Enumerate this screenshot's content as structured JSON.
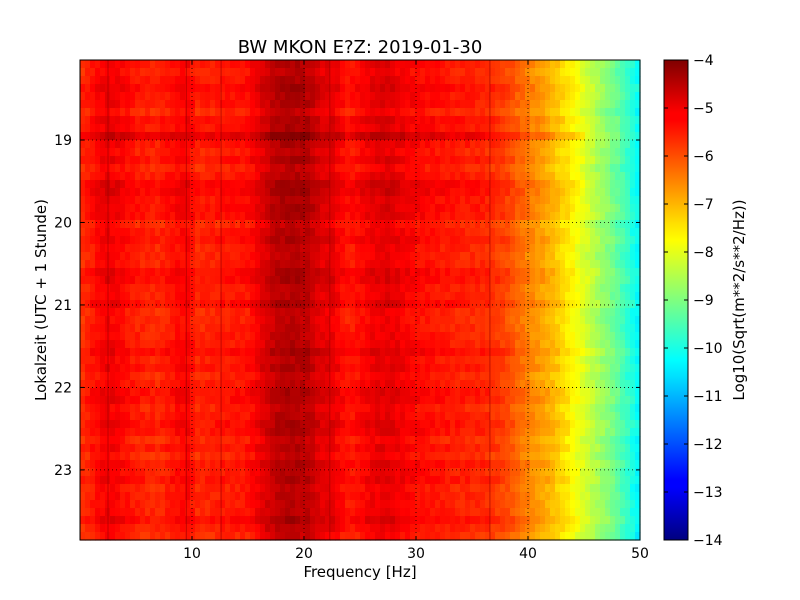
{
  "chart_data": {
    "type": "heatmap",
    "title": "BW MKON E?Z: 2019-01-30",
    "xlabel": "Frequency [Hz]",
    "ylabel": "Lokalzeit (UTC + 1 Stunde)",
    "xlim": [
      0,
      50
    ],
    "ylim_hours": [
      18.03,
      23.85
    ],
    "y_inverted": true,
    "x_ticks": [
      10,
      20,
      30,
      40,
      50
    ],
    "x_tick_labels": [
      "10",
      "20",
      "30",
      "40",
      "50"
    ],
    "y_ticks": [
      19,
      20,
      21,
      22,
      23
    ],
    "y_tick_labels": [
      "19",
      "20",
      "21",
      "22",
      "23"
    ],
    "grid": "dotted",
    "colormap": "jet",
    "colorbar": {
      "label": "Log10(Sqrt(m**2/s**2/Hz))",
      "range": [
        -14,
        -4
      ],
      "ticks": [
        -4,
        -5,
        -6,
        -7,
        -8,
        -9,
        -10,
        -11,
        -12,
        -13,
        -14
      ],
      "tick_labels": [
        "−4",
        "−5",
        "−6",
        "−7",
        "−8",
        "−9",
        "−10",
        "−11",
        "−12",
        "−13",
        "−14"
      ]
    },
    "spectrum_profile": {
      "frequency_hz": [
        0,
        2.5,
        5,
        7,
        9.5,
        10.5,
        12.5,
        15,
        16.5,
        17.5,
        19,
        20.5,
        21.5,
        22.5,
        24,
        26,
        27.5,
        30,
        33,
        36,
        38,
        40,
        42,
        44,
        46,
        48,
        50
      ],
      "log10_amplitude": [
        -5.7,
        -5.1,
        -5.5,
        -5.6,
        -5.2,
        -5.6,
        -5.5,
        -5.4,
        -4.9,
        -4.6,
        -4.5,
        -4.6,
        -5.0,
        -5.0,
        -5.5,
        -5.1,
        -5.0,
        -5.3,
        -5.5,
        -5.6,
        -5.9,
        -6.5,
        -7.0,
        -7.7,
        -8.5,
        -9.3,
        -10.3
      ]
    },
    "narrow_lines_hz": [
      2.5,
      9.5,
      12.6,
      22.3,
      36.6
    ],
    "broadband_bursts_hours": [
      18.95,
      19.5,
      19.6
    ]
  }
}
